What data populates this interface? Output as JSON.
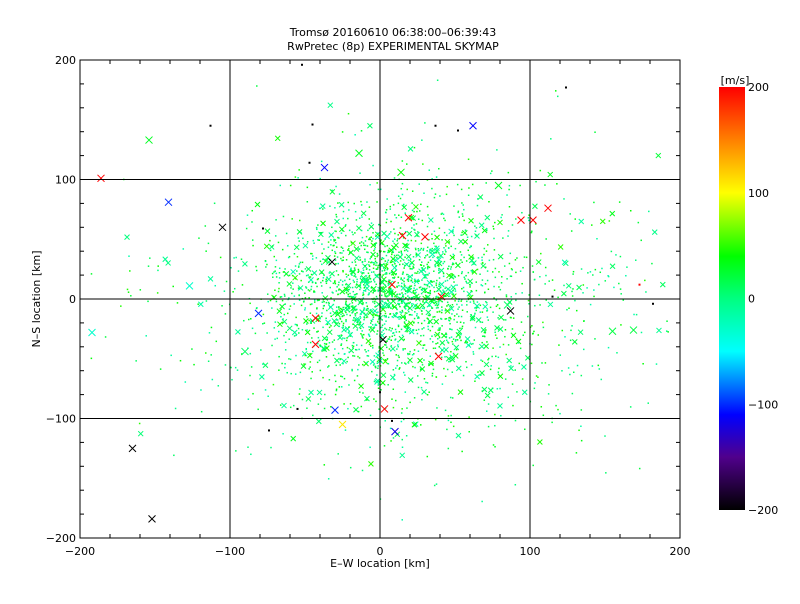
{
  "chart_data": {
    "type": "scatter",
    "title": "Tromsø 20160610 06:38:00–06:39:43",
    "subtitle": "RwPretec (8p) EXPERIMENTAL SKYMAP",
    "xlabel": "E–W location [km]",
    "ylabel": "N–S location [km]",
    "xlim": [
      -200,
      200
    ],
    "ylim": [
      -200,
      200
    ],
    "xticks": [
      "−200",
      "−100",
      "0",
      "100",
      "200"
    ],
    "yticks": [
      "−200",
      "−100",
      "0",
      "100",
      "200"
    ],
    "xtick_values": [
      -200,
      -100,
      0,
      100,
      200
    ],
    "ytick_values": [
      -200,
      -100,
      0,
      100,
      200
    ],
    "grid": true,
    "colorbar": {
      "label": "[m/s]",
      "range": [
        -200,
        200
      ],
      "tick_values": [
        200,
        100,
        0,
        -100,
        -200
      ],
      "tick_labels": [
        "200",
        "100",
        "0",
        "−100",
        "−200"
      ],
      "stops": [
        {
          "v": -200,
          "color": "#000000"
        },
        {
          "v": -150,
          "color": "#50008c"
        },
        {
          "v": -110,
          "color": "#0000ff"
        },
        {
          "v": -50,
          "color": "#00ffff"
        },
        {
          "v": 0,
          "color": "#00ff80"
        },
        {
          "v": 40,
          "color": "#00ff00"
        },
        {
          "v": 100,
          "color": "#ffff00"
        },
        {
          "v": 150,
          "color": "#ff8000"
        },
        {
          "v": 200,
          "color": "#ff0000"
        }
      ]
    },
    "cross_markers": [
      {
        "x": -186,
        "y": 101,
        "v": 200
      },
      {
        "x": -154,
        "y": 133,
        "v": 30
      },
      {
        "x": -141,
        "y": 81,
        "v": -100
      },
      {
        "x": -105,
        "y": 60,
        "v": -200
      },
      {
        "x": -37,
        "y": 110,
        "v": -110
      },
      {
        "x": 62,
        "y": 145,
        "v": -110
      },
      {
        "x": -14,
        "y": 122,
        "v": 30
      },
      {
        "x": 19,
        "y": 68,
        "v": 200
      },
      {
        "x": 15,
        "y": 53,
        "v": 200
      },
      {
        "x": 30,
        "y": 52,
        "v": 200
      },
      {
        "x": 94,
        "y": 66,
        "v": 200
      },
      {
        "x": 102,
        "y": 66,
        "v": 200
      },
      {
        "x": 112,
        "y": 76,
        "v": 200
      },
      {
        "x": 41,
        "y": 2,
        "v": 200
      },
      {
        "x": 8,
        "y": 12,
        "v": 200
      },
      {
        "x": -43,
        "y": -16,
        "v": 200
      },
      {
        "x": -43,
        "y": -38,
        "v": 200
      },
      {
        "x": 3,
        "y": -92,
        "v": 200
      },
      {
        "x": 39,
        "y": -48,
        "v": 200
      },
      {
        "x": 2,
        "y": -34,
        "v": -200
      },
      {
        "x": 87,
        "y": -10,
        "v": -200
      },
      {
        "x": -32,
        "y": 31,
        "v": -200
      },
      {
        "x": -165,
        "y": -125,
        "v": -200
      },
      {
        "x": -152,
        "y": -184,
        "v": -200
      },
      {
        "x": -81,
        "y": -12,
        "v": -100
      },
      {
        "x": 10,
        "y": -111,
        "v": -120
      },
      {
        "x": -30,
        "y": -93,
        "v": -100
      },
      {
        "x": -127,
        "y": 11,
        "v": -30
      },
      {
        "x": -192,
        "y": -28,
        "v": -30
      },
      {
        "x": -90,
        "y": -44,
        "v": 10
      },
      {
        "x": 155,
        "y": -27,
        "v": 20
      },
      {
        "x": 169,
        "y": -26,
        "v": 20
      },
      {
        "x": 79,
        "y": 95,
        "v": 30
      },
      {
        "x": 14,
        "y": 106,
        "v": 40
      },
      {
        "x": -25,
        "y": -105,
        "v": 110
      },
      {
        "x": 85,
        "y": -5,
        "v": 10
      }
    ],
    "dot_markers": [
      {
        "x": 124,
        "y": 177,
        "v": -200
      },
      {
        "x": -52,
        "y": 196,
        "v": -200
      },
      {
        "x": -113,
        "y": 145,
        "v": -200
      },
      {
        "x": -45,
        "y": 146,
        "v": -200
      },
      {
        "x": 37,
        "y": 145,
        "v": -200
      },
      {
        "x": 52,
        "y": 141,
        "v": -200
      },
      {
        "x": -47,
        "y": 114,
        "v": -200
      },
      {
        "x": -78,
        "y": 59,
        "v": -200
      },
      {
        "x": -55,
        "y": -92,
        "v": -200
      },
      {
        "x": -74,
        "y": -110,
        "v": -200
      },
      {
        "x": 182,
        "y": -4,
        "v": -200
      },
      {
        "x": 173,
        "y": 12,
        "v": 200
      },
      {
        "x": 115,
        "y": 2,
        "v": -200
      },
      {
        "x": 8,
        "y": -102,
        "v": -200
      },
      {
        "x": 0,
        "y": -78,
        "v": -200
      }
    ],
    "dense_cloud": {
      "approx_count": 2600,
      "center": [
        5,
        5
      ],
      "core_spread_km": [
        38,
        35
      ],
      "tail_spread_km": [
        80,
        60
      ],
      "velocity_range": [
        -20,
        50
      ]
    }
  }
}
